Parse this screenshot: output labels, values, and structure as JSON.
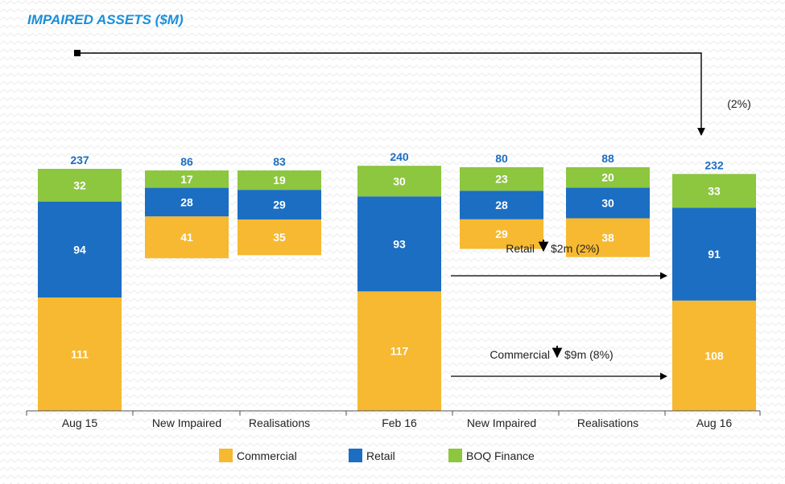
{
  "chart_data": {
    "type": "bar",
    "title": "IMPAIRED ASSETS ($M)",
    "categories": [
      "Aug 15",
      "New Impaired",
      "Realisations",
      "Feb 16",
      "New Impaired",
      "Realisations",
      "Aug 16"
    ],
    "totals": [
      237,
      86,
      83,
      240,
      80,
      88,
      232
    ],
    "series": [
      {
        "name": "Commercial",
        "color": "#F6B931",
        "values": [
          111,
          41,
          35,
          117,
          29,
          38,
          108
        ]
      },
      {
        "name": "Retail",
        "color": "#1B6EC2",
        "values": [
          94,
          28,
          29,
          93,
          28,
          30,
          91
        ]
      },
      {
        "name": "BOQ Finance",
        "color": "#8DC63F",
        "values": [
          32,
          17,
          19,
          30,
          23,
          20,
          33
        ]
      }
    ],
    "annotations": {
      "overall_change": "(2%)",
      "retail": {
        "label": "Retail",
        "change": "$2m (2%)"
      },
      "commercial": {
        "label": "Commercial",
        "change": "$9m (8%)"
      }
    },
    "colors": {
      "title": "#1B8FD8",
      "total_label": "#1B6EC2",
      "axis": "#555555",
      "segment_label": "#ffffff"
    }
  }
}
